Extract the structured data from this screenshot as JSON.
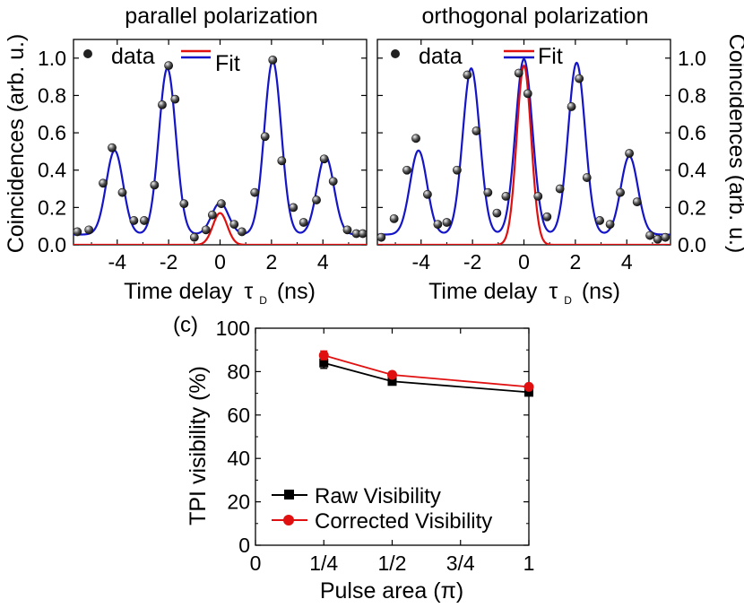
{
  "chart_data": [
    {
      "type": "scatter",
      "id": "parallel",
      "title": "parallel polarization",
      "xlabel_main": "Time delay",
      "xlabel_symbol": "τ",
      "xlabel_sub": "D",
      "xlabel_unit": "(ns)",
      "ylabel": "Coincidences (arb. u.)",
      "xlim": [
        -5.7,
        5.7
      ],
      "ylim": [
        0,
        1.1
      ],
      "xticks": [
        -4,
        -2,
        0,
        2,
        4
      ],
      "yticks": [
        0.0,
        0.2,
        0.4,
        0.6,
        0.8,
        1.0
      ],
      "ytick_labels": [
        "0.0",
        "0.2",
        "0.4",
        "0.6",
        "0.8",
        "1.0"
      ],
      "legend": {
        "data_label": "data",
        "fit_label": "Fit"
      },
      "colors": {
        "fit_total": "#1414c8",
        "fit_center": "#e01010",
        "data": "#222222"
      },
      "data_points": [
        [
          -5.55,
          0.07
        ],
        [
          -5.1,
          0.08
        ],
        [
          -4.55,
          0.33
        ],
        [
          -4.2,
          0.52
        ],
        [
          -3.8,
          0.28
        ],
        [
          -3.35,
          0.13
        ],
        [
          -2.95,
          0.13
        ],
        [
          -2.55,
          0.32
        ],
        [
          -2.25,
          0.75
        ],
        [
          -2.0,
          0.96
        ],
        [
          -1.75,
          0.78
        ],
        [
          -1.4,
          0.22
        ],
        [
          -1.0,
          0.04
        ],
        [
          -0.55,
          0.08
        ],
        [
          -0.3,
          0.16
        ],
        [
          0.05,
          0.22
        ],
        [
          0.55,
          0.11
        ],
        [
          0.85,
          0.07
        ],
        [
          1.35,
          0.28
        ],
        [
          1.75,
          0.58
        ],
        [
          2.05,
          0.99
        ],
        [
          2.4,
          0.45
        ],
        [
          2.85,
          0.2
        ],
        [
          3.25,
          0.12
        ],
        [
          3.75,
          0.24
        ],
        [
          4.05,
          0.46
        ],
        [
          4.4,
          0.34
        ],
        [
          4.95,
          0.08
        ],
        [
          5.3,
          0.06
        ],
        [
          5.55,
          0.06
        ]
      ],
      "fit_peaks": [
        {
          "x0": -4.1,
          "amp": 0.45
        },
        {
          "x0": -2.05,
          "amp": 0.89
        },
        {
          "x0": 0.0,
          "amp": 0.17
        },
        {
          "x0": 2.05,
          "amp": 0.93
        },
        {
          "x0": 4.1,
          "amp": 0.42
        }
      ],
      "fit_baseline": 0.055,
      "fit_width": 0.33,
      "center_peak": {
        "x0": 0.0,
        "amp": 0.17,
        "width": 0.28
      }
    },
    {
      "type": "scatter",
      "id": "orthogonal",
      "title": "orthogonal polarization",
      "xlabel_main": "Time delay",
      "xlabel_symbol": "τ",
      "xlabel_sub": "D",
      "xlabel_unit": "(ns)",
      "ylabel": "Coincidences (arb. u.)",
      "xlim": [
        -5.7,
        5.7
      ],
      "ylim": [
        0,
        1.1
      ],
      "xticks": [
        -4,
        -2,
        0,
        2,
        4
      ],
      "yticks": [
        0.0,
        0.2,
        0.4,
        0.6,
        0.8,
        1.0
      ],
      "ytick_labels": [
        "0.0",
        "0.2",
        "0.4",
        "0.6",
        "0.8",
        "1.0"
      ],
      "legend": {
        "data_label": "data",
        "fit_label": "Fit"
      },
      "colors": {
        "fit_total": "#1414c8",
        "fit_center": "#e01010",
        "data": "#222222"
      },
      "data_points": [
        [
          -5.55,
          0.04
        ],
        [
          -5.05,
          0.14
        ],
        [
          -4.55,
          0.4
        ],
        [
          -4.2,
          0.57
        ],
        [
          -3.75,
          0.27
        ],
        [
          -3.35,
          0.11
        ],
        [
          -3.0,
          0.12
        ],
        [
          -2.6,
          0.4
        ],
        [
          -2.2,
          0.91
        ],
        [
          -1.85,
          0.61
        ],
        [
          -1.4,
          0.28
        ],
        [
          -1.05,
          0.17
        ],
        [
          -0.7,
          0.26
        ],
        [
          -0.2,
          0.92
        ],
        [
          0.15,
          0.81
        ],
        [
          0.55,
          0.26
        ],
        [
          0.9,
          0.15
        ],
        [
          1.4,
          0.3
        ],
        [
          1.85,
          0.74
        ],
        [
          2.15,
          0.89
        ],
        [
          2.45,
          0.36
        ],
        [
          2.95,
          0.13
        ],
        [
          3.35,
          0.11
        ],
        [
          3.75,
          0.28
        ],
        [
          4.1,
          0.49
        ],
        [
          4.4,
          0.23
        ],
        [
          4.9,
          0.05
        ],
        [
          5.2,
          0.03
        ],
        [
          5.5,
          0.04
        ]
      ],
      "fit_peaks": [
        {
          "x0": -4.1,
          "amp": 0.45
        },
        {
          "x0": -2.05,
          "amp": 0.89
        },
        {
          "x0": 0.0,
          "amp": 0.94
        },
        {
          "x0": 2.05,
          "amp": 0.92
        },
        {
          "x0": 4.1,
          "amp": 0.42
        }
      ],
      "fit_baseline": 0.055,
      "fit_width": 0.33,
      "center_peak": {
        "x0": 0.0,
        "amp": 0.96,
        "width": 0.28
      }
    },
    {
      "type": "line",
      "id": "visibility",
      "panel_label": "(c)",
      "xlabel": "Pulse area (π)",
      "ylabel": "TPI visibility (%)",
      "xlim": [
        0,
        1.0
      ],
      "ylim": [
        0,
        100
      ],
      "xticks": [
        0,
        0.25,
        0.5,
        0.75,
        1.0
      ],
      "xtick_labels": [
        "0",
        "1/4",
        "1/2",
        "3/4",
        "1"
      ],
      "yticks": [
        0,
        20,
        40,
        60,
        80,
        100
      ],
      "ytick_labels": [
        "0",
        "20",
        "40",
        "60",
        "80",
        "100"
      ],
      "series": [
        {
          "name": "Raw Visibility",
          "color": "#000000",
          "marker": "square",
          "x": [
            0.25,
            0.5,
            1.0
          ],
          "y": [
            84,
            75.5,
            70.5
          ],
          "err": [
            2.5,
            1.0,
            1.0
          ]
        },
        {
          "name": "Corrected Visibility",
          "color": "#e01010",
          "marker": "circle",
          "x": [
            0.25,
            0.5,
            1.0
          ],
          "y": [
            87.5,
            78.5,
            73
          ],
          "err": [
            2.0,
            1.0,
            1.0
          ]
        }
      ]
    }
  ]
}
